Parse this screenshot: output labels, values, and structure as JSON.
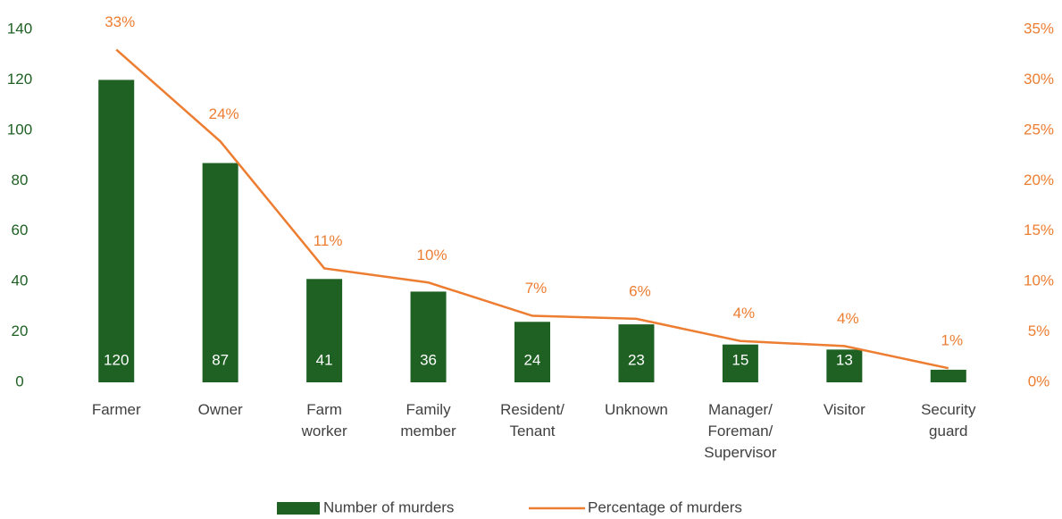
{
  "chart_data": {
    "type": "bar",
    "categories": [
      "Farmer",
      "Owner",
      "Farm\nworker",
      "Family\nmember",
      "Resident/\nTenant",
      "Unknown",
      "Manager/\nForeman/\nSupervisor",
      "Visitor",
      "Security\nguard"
    ],
    "series": [
      {
        "name": "Number of murders",
        "type": "bar",
        "color": "#1e6123",
        "values": [
          120,
          87,
          41,
          36,
          24,
          23,
          15,
          13,
          5
        ]
      },
      {
        "name": "Percentage of murders",
        "type": "line",
        "axis": "y2",
        "color": "#ed7d31",
        "values": [
          33.0,
          23.9,
          11.3,
          9.9,
          6.6,
          6.3,
          4.1,
          3.6,
          1.4
        ],
        "value_labels": [
          "33%",
          "24%",
          "11%",
          "10%",
          "7%",
          "6%",
          "4%",
          "4%",
          "1%"
        ]
      }
    ],
    "ylim": [
      0,
      140
    ],
    "yticks": [
      0,
      20,
      40,
      60,
      80,
      100,
      120,
      140
    ],
    "y2lim": [
      0,
      35
    ],
    "y2ticks": [
      {
        "value": 0,
        "label": "0%"
      },
      {
        "value": 5,
        "label": "5%"
      },
      {
        "value": 10,
        "label": "10%"
      },
      {
        "value": 15,
        "label": "15%"
      },
      {
        "value": 20,
        "label": "20%"
      },
      {
        "value": 25,
        "label": "25%"
      },
      {
        "value": 30,
        "label": "30%"
      },
      {
        "value": 35,
        "label": "35%"
      }
    ],
    "legend": "bottom"
  }
}
